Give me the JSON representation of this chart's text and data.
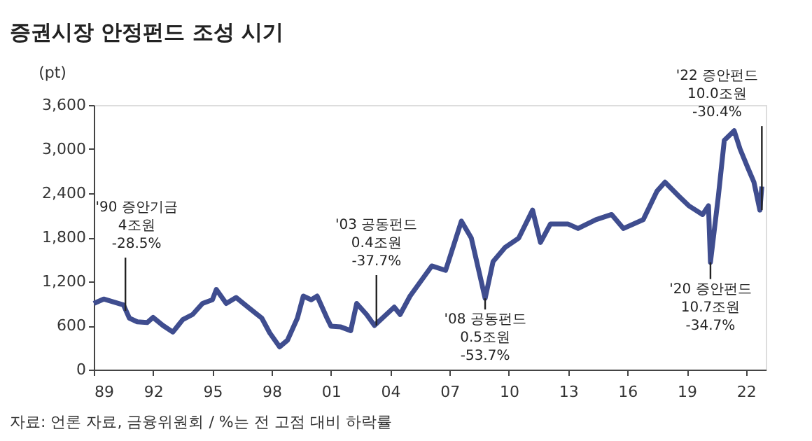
{
  "chart_data": {
    "type": "line",
    "title": "증권시장 안정펀드 조성 시기",
    "ylabel": "(pt)",
    "x": [
      1989.0,
      1989.5,
      1990.0,
      1990.5,
      1990.8,
      1991.2,
      1991.7,
      1992.0,
      1992.5,
      1993.0,
      1993.5,
      1994.0,
      1994.5,
      1995.0,
      1995.2,
      1995.7,
      1996.2,
      1996.8,
      1997.5,
      1997.9,
      1998.4,
      1998.8,
      1999.3,
      1999.6,
      2000.0,
      2000.3,
      2000.8,
      2001.0,
      2001.5,
      2002.0,
      2002.3,
      2002.8,
      2003.2,
      2003.6,
      2004.2,
      2004.5,
      2005.0,
      2006.1,
      2006.8,
      2007.6,
      2008.1,
      2008.8,
      2009.2,
      2009.8,
      2010.5,
      2011.2,
      2011.6,
      2012.1,
      2013.0,
      2013.5,
      2014.4,
      2015.2,
      2015.8,
      2016.8,
      2017.5,
      2017.9,
      2018.6,
      2019.1,
      2019.8,
      2020.1,
      2020.2,
      2020.6,
      2020.9,
      2021.4,
      2021.7,
      2022.1,
      2022.4,
      2022.7,
      2022.8
    ],
    "series": [
      {
        "color": "#3f4d8f",
        "values": [
          900,
          960,
          920,
          880,
          700,
          650,
          640,
          710,
          600,
          510,
          680,
          750,
          900,
          950,
          1090,
          900,
          980,
          850,
          700,
          500,
          310,
          400,
          700,
          1000,
          950,
          1000,
          700,
          590,
          580,
          530,
          900,
          750,
          600,
          700,
          850,
          750,
          1000,
          1410,
          1350,
          2020,
          1790,
          970,
          1470,
          1660,
          1790,
          2170,
          1730,
          1980,
          1980,
          1920,
          2040,
          2110,
          1920,
          2040,
          2430,
          2550,
          2360,
          2230,
          2110,
          2230,
          1460,
          2360,
          3120,
          3250,
          3000,
          2740,
          2550,
          2170,
          2490
        ]
      }
    ],
    "xlim": [
      1989,
      2023
    ],
    "xticks": [
      {
        "value": 1989,
        "label": "89"
      },
      {
        "value": 1992,
        "label": "92"
      },
      {
        "value": 1995,
        "label": "95"
      },
      {
        "value": 1998,
        "label": "98"
      },
      {
        "value": 2001,
        "label": "01"
      },
      {
        "value": 2004,
        "label": "04"
      },
      {
        "value": 2007,
        "label": "07"
      },
      {
        "value": 2010,
        "label": "10"
      },
      {
        "value": 2013,
        "label": "13"
      },
      {
        "value": 2016,
        "label": "16"
      },
      {
        "value": 2019,
        "label": "19"
      },
      {
        "value": 2022,
        "label": "22"
      }
    ],
    "ylim": [
      0,
      3600
    ],
    "yticks": [
      0,
      {
        "value": 600,
        "label": "600"
      },
      {
        "value": 1200,
        "label": "1,200"
      },
      {
        "value": 1800,
        "label": "1,800"
      },
      {
        "value": 2400,
        "label": "2,400"
      },
      {
        "value": 3000,
        "label": "3,000"
      },
      {
        "value": 3600,
        "label": "3,600"
      }
    ],
    "grid": false,
    "marker": "none",
    "line_style": "solid",
    "annotations": [
      {
        "text": "'90 증안기금\n4조원\n-28.5%",
        "x": 1990.6,
        "y": 800
      },
      {
        "text": "'03 공동펀드\n0.4조원\n-37.7%",
        "x": 2003.3,
        "y": 600
      },
      {
        "text": "'08 공동펀드\n0.5조원\n-53.7%",
        "x": 2008.8,
        "y": 970
      },
      {
        "text": "'20 증안펀드\n10.7조원\n-34.7%",
        "x": 2020.2,
        "y": 1460
      },
      {
        "text": "'22 증안펀드\n10.0조원\n-30.4%",
        "x": 2022.8,
        "y": 2170
      },
      "자료: 언론 자료, 금융위원회 / %는 전 고점 대비 하락률"
    ]
  }
}
